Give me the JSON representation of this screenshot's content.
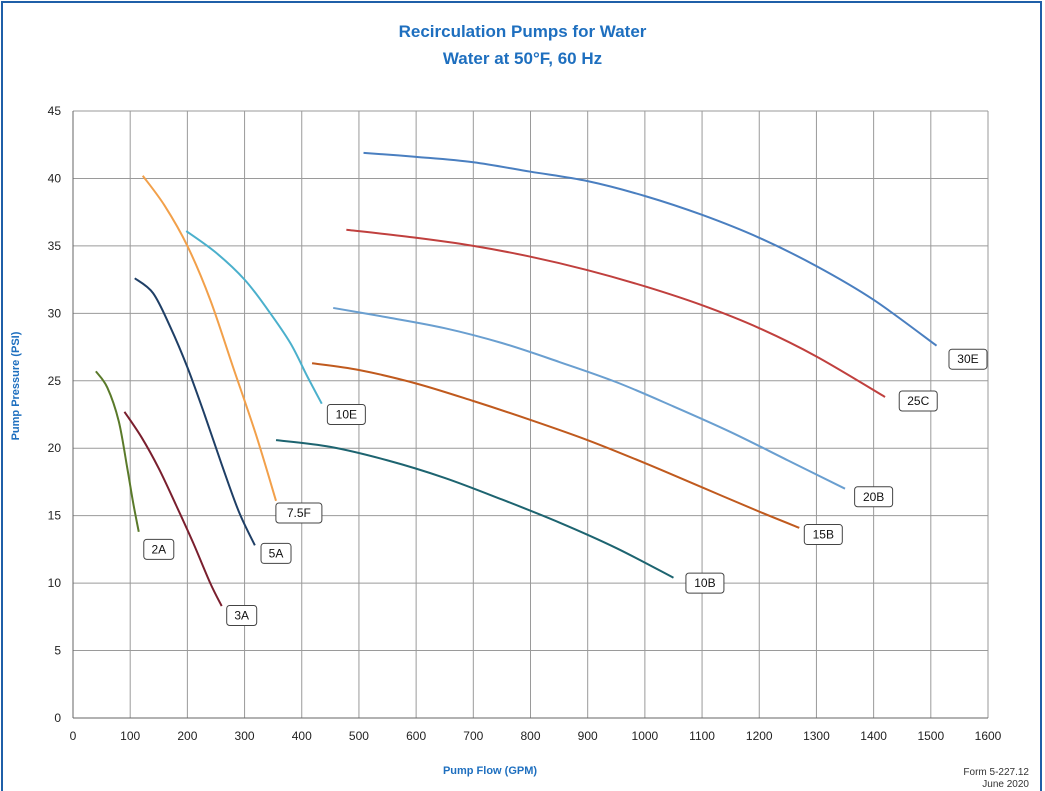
{
  "chart_data": {
    "type": "line",
    "title": "Recirculation Pumps for Water",
    "subtitle": "Water at 50°F, 60 Hz",
    "xlabel": "Pump Flow  (GPM)",
    "ylabel": "Pump Pressure (PSI)",
    "xlim": [
      0,
      1600
    ],
    "ylim": [
      0,
      45
    ],
    "xticks": [
      0,
      100,
      200,
      300,
      400,
      500,
      600,
      700,
      800,
      900,
      1000,
      1100,
      1200,
      1300,
      1400,
      1500,
      1600
    ],
    "yticks": [
      0,
      5,
      10,
      15,
      20,
      25,
      30,
      35,
      40,
      45
    ],
    "grid": true,
    "series": [
      {
        "name": "2A",
        "color": "#5a7a2a",
        "x": [
          40,
          60,
          80,
          95,
          105,
          115
        ],
        "y": [
          25.7,
          24.5,
          22,
          18.5,
          16,
          13.8
        ]
      },
      {
        "name": "3A",
        "color": "#7a1f2e",
        "x": [
          90,
          120,
          150,
          180,
          210,
          240,
          260
        ],
        "y": [
          22.7,
          20.8,
          18.5,
          15.8,
          13,
          10,
          8.3
        ]
      },
      {
        "name": "5A",
        "color": "#1f3f66",
        "x": [
          108,
          140,
          170,
          200,
          230,
          260,
          290,
          318
        ],
        "y": [
          32.6,
          31.5,
          29,
          26,
          22.5,
          18.8,
          15.3,
          12.8
        ]
      },
      {
        "name": "7.5F",
        "color": "#f2a04a",
        "x": [
          122,
          160,
          200,
          240,
          280,
          320,
          355
        ],
        "y": [
          40.2,
          38,
          35,
          31,
          26,
          21,
          16.1
        ]
      },
      {
        "name": "10E",
        "color": "#4bb0cc",
        "x": [
          198,
          250,
          300,
          340,
          380,
          410,
          435
        ],
        "y": [
          36.1,
          34.5,
          32.5,
          30.3,
          27.8,
          25.3,
          23.3
        ]
      },
      {
        "name": "10B",
        "color": "#1d6470",
        "x": [
          355,
          450,
          550,
          650,
          750,
          850,
          950,
          1050
        ],
        "y": [
          20.6,
          20.1,
          19.1,
          17.8,
          16.2,
          14.5,
          12.6,
          10.4
        ]
      },
      {
        "name": "15B",
        "color": "#c05a1e",
        "x": [
          418,
          500,
          600,
          700,
          800,
          900,
          1000,
          1100,
          1200,
          1270
        ],
        "y": [
          26.3,
          25.8,
          24.8,
          23.5,
          22.1,
          20.6,
          18.9,
          17.1,
          15.3,
          14.1
        ]
      },
      {
        "name": "20B",
        "color": "#6a9fd0",
        "x": [
          455,
          550,
          650,
          750,
          850,
          950,
          1050,
          1150,
          1250,
          1350
        ],
        "y": [
          30.4,
          29.7,
          28.9,
          27.8,
          26.4,
          24.9,
          23.1,
          21.2,
          19.1,
          17
        ]
      },
      {
        "name": "25C",
        "color": "#c0403e",
        "x": [
          478,
          600,
          700,
          800,
          900,
          1000,
          1100,
          1200,
          1300,
          1420
        ],
        "y": [
          36.2,
          35.6,
          35,
          34.2,
          33.2,
          32,
          30.6,
          28.9,
          26.8,
          23.8
        ]
      },
      {
        "name": "30E",
        "color": "#4a7fc0",
        "x": [
          508,
          600,
          700,
          800,
          900,
          1000,
          1100,
          1200,
          1300,
          1400,
          1510
        ],
        "y": [
          41.9,
          41.6,
          41.2,
          40.5,
          39.8,
          38.7,
          37.3,
          35.6,
          33.5,
          31,
          27.6
        ]
      }
    ],
    "labels": [
      {
        "text": "2A",
        "x": 150,
        "y": 12.5
      },
      {
        "text": "3A",
        "x": 295,
        "y": 7.6
      },
      {
        "text": "5A",
        "x": 355,
        "y": 12.2
      },
      {
        "text": "7.5F",
        "x": 395,
        "y": 15.2
      },
      {
        "text": "10E",
        "x": 478,
        "y": 22.5
      },
      {
        "text": "10B",
        "x": 1105,
        "y": 10.0
      },
      {
        "text": "15B",
        "x": 1312,
        "y": 13.6
      },
      {
        "text": "20B",
        "x": 1400,
        "y": 16.4
      },
      {
        "text": "25C",
        "x": 1478,
        "y": 23.5
      },
      {
        "text": "30E",
        "x": 1565,
        "y": 26.6
      }
    ]
  },
  "footer": {
    "form": "Form 5-227.12",
    "date": "June 2020"
  }
}
